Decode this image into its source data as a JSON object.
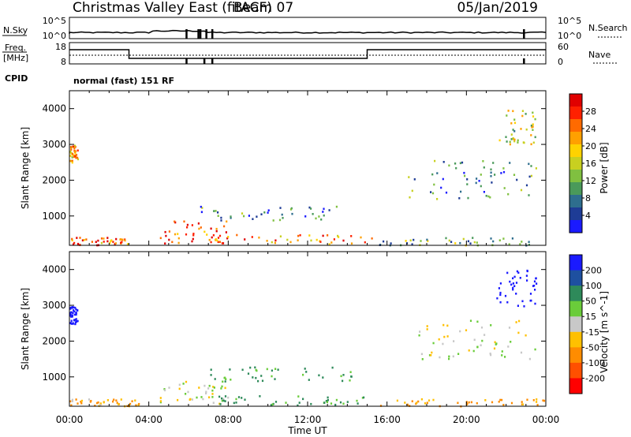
{
  "header": {
    "site": "Christmas Valley East (fitACF)",
    "beam": "Beam 07",
    "date": "05/Jan/2019"
  },
  "noise_panel": {
    "left_label": "N.Sky",
    "right_label": "N.Search",
    "left_ticks": [
      "10^5",
      "10^0"
    ],
    "right_ticks": [
      "10^5",
      "10^0"
    ]
  },
  "freq_panel": {
    "left_label_1": "Freq.",
    "left_label_2": "[MHz]",
    "right_label": "Nave",
    "left_ticks": [
      "18",
      "8"
    ],
    "right_ticks": [
      "60",
      "0"
    ]
  },
  "cpid_panel": {
    "label": "CPID",
    "text": "normal (fast) 151 RF"
  },
  "chart_data": [
    {
      "type": "heatmap",
      "quantity": "Power",
      "ylabel": "Slant Range [km]",
      "xlabel": "",
      "y_ticks": [
        1000,
        2000,
        3000,
        4000
      ],
      "ylim": [
        180,
        4500
      ],
      "colorbar": {
        "label": "Power [dB]",
        "ticks": [
          "4",
          "8",
          "12",
          "16",
          "20",
          "24",
          "28"
        ],
        "colors": [
          "#1a1aff",
          "#1e3c96",
          "#2e6e8e",
          "#4a9a5a",
          "#80c040",
          "#c8d020",
          "#ffd200",
          "#ffa000",
          "#ff6a00",
          "#ff2000",
          "#e00000"
        ]
      },
      "regions": [
        {
          "x": [
            0.0,
            0.4
          ],
          "y": [
            2500,
            3000
          ],
          "value": 20
        },
        {
          "x": [
            0.0,
            3.2
          ],
          "y": [
            200,
            420
          ],
          "value": 24
        },
        {
          "x": [
            4.5,
            8.0
          ],
          "y": [
            230,
            900
          ],
          "value": 26
        },
        {
          "x": [
            6.5,
            13.5
          ],
          "y": [
            900,
            1300
          ],
          "value": 8
        },
        {
          "x": [
            7.0,
            15.5
          ],
          "y": [
            230,
            500
          ],
          "value": 22
        },
        {
          "x": [
            15.5,
            24.0
          ],
          "y": [
            200,
            420
          ],
          "value": 12
        },
        {
          "x": [
            17.0,
            23.5
          ],
          "y": [
            1500,
            2600
          ],
          "value": 10
        },
        {
          "x": [
            21.5,
            23.5
          ],
          "y": [
            3000,
            4000
          ],
          "value": 16
        }
      ]
    },
    {
      "type": "heatmap",
      "quantity": "Velocity",
      "ylabel": "Slant Range [km]",
      "xlabel": "Time UT",
      "x_ticks": [
        "00:00",
        "04:00",
        "08:00",
        "12:00",
        "16:00",
        "20:00",
        "00:00"
      ],
      "y_ticks": [
        1000,
        2000,
        3000,
        4000
      ],
      "ylim": [
        180,
        4500
      ],
      "colorbar": {
        "label": "Velocity [m s^-1]",
        "ticks": [
          "200",
          "100",
          "50",
          "15",
          "-15",
          "-50",
          "-100",
          "-200"
        ],
        "colors": [
          "#1a1aff",
          "#1e50a0",
          "#2e8a5a",
          "#6acc3a",
          "#c8c8c8",
          "#ffc000",
          "#ff8c00",
          "#ff5000",
          "#ff0000"
        ]
      },
      "regions": [
        {
          "x": [
            0.0,
            0.4
          ],
          "y": [
            2500,
            3000
          ],
          "value": 200
        },
        {
          "x": [
            0.0,
            3.5
          ],
          "y": [
            200,
            400
          ],
          "value": -30
        },
        {
          "x": [
            4.5,
            8.0
          ],
          "y": [
            230,
            900
          ],
          "value": 0
        },
        {
          "x": [
            7.0,
            14.5
          ],
          "y": [
            900,
            1300
          ],
          "value": 40
        },
        {
          "x": [
            7.5,
            15.0
          ],
          "y": [
            230,
            500
          ],
          "value": 40
        },
        {
          "x": [
            15.5,
            24.0
          ],
          "y": [
            200,
            420
          ],
          "value": -40
        },
        {
          "x": [
            17.5,
            23.5
          ],
          "y": [
            1500,
            2600
          ],
          "value": 0
        },
        {
          "x": [
            21.5,
            23.5
          ],
          "y": [
            3000,
            4000
          ],
          "value": 200
        }
      ]
    }
  ]
}
